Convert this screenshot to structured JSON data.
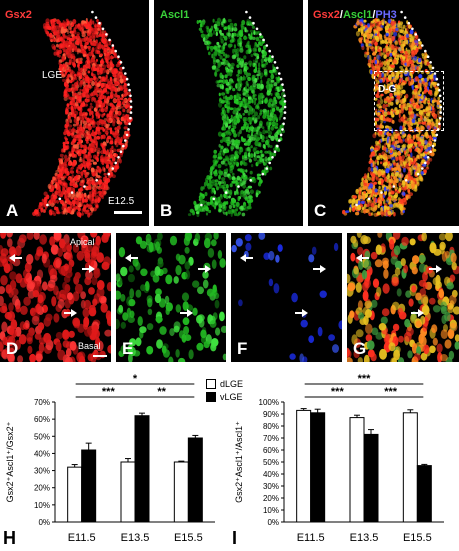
{
  "panels_top": [
    {
      "letter": "A",
      "title_parts": [
        {
          "text": "Gsx2",
          "color": "#ff3b3b"
        }
      ],
      "region": "LGE",
      "stage": "E12.5"
    },
    {
      "letter": "B",
      "title_parts": [
        {
          "text": "Ascl1",
          "color": "#39d139"
        }
      ]
    },
    {
      "letter": "C",
      "title_parts": [
        {
          "text": "Gsx2",
          "color": "#ff3b3b"
        },
        {
          "text": "/",
          "color": "#ffffff"
        },
        {
          "text": "Ascl1",
          "color": "#39d139"
        },
        {
          "text": "/",
          "color": "#ffffff"
        },
        {
          "text": "PH3",
          "color": "#6a6aff"
        }
      ],
      "box_label": "D-G"
    }
  ],
  "panels_mid": [
    {
      "letter": "D",
      "apical": "Apical",
      "basal": "Basal"
    },
    {
      "letter": "E"
    },
    {
      "letter": "F"
    },
    {
      "letter": "G"
    }
  ],
  "colors": {
    "red": "#ff2a2a",
    "green": "#2fd22f",
    "blue": "#2a3cff",
    "yellow": "#e8c020"
  },
  "chart_data": [
    {
      "type": "bar",
      "panel": "H",
      "categories": [
        "E11.5",
        "E13.5",
        "E15.5"
      ],
      "ylabel": "Gsx2⁺Ascl1⁺/Gsx2⁺",
      "yticks": [
        "0%",
        "10%",
        "20%",
        "30%",
        "40%",
        "50%",
        "60%",
        "70%"
      ],
      "ylim": [
        0,
        70
      ],
      "series": [
        {
          "name": "dLGE",
          "fill": "#ffffff",
          "values": [
            32,
            35,
            35
          ],
          "errors": [
            1.5,
            2,
            0.5
          ]
        },
        {
          "name": "vLGE",
          "fill": "#000000",
          "values": [
            42,
            62,
            49
          ],
          "errors": [
            4,
            1.5,
            1.5
          ]
        }
      ],
      "significance": [
        {
          "from": 0,
          "to": 2,
          "label": "*"
        },
        {
          "from": 0,
          "to": 1,
          "label": "***"
        },
        {
          "from": 1,
          "to": 2,
          "label": "**"
        }
      ]
    },
    {
      "type": "bar",
      "panel": "I",
      "categories": [
        "E11.5",
        "E13.5",
        "E15.5"
      ],
      "ylabel": "Gsx2⁺Ascl1⁺/Ascl1⁺",
      "yticks": [
        "0%",
        "10%",
        "20%",
        "30%",
        "40%",
        "50%",
        "60%",
        "70%",
        "80%",
        "90%",
        "100%"
      ],
      "ylim": [
        0,
        100
      ],
      "series": [
        {
          "name": "dLGE",
          "fill": "#ffffff",
          "values": [
            93,
            87,
            91
          ],
          "errors": [
            1.5,
            2,
            2.5
          ]
        },
        {
          "name": "vLGE",
          "fill": "#000000",
          "values": [
            91,
            73,
            47
          ],
          "errors": [
            3,
            4,
            1
          ]
        }
      ],
      "significance": [
        {
          "from": 0,
          "to": 2,
          "label": "***"
        },
        {
          "from": 0,
          "to": 1,
          "label": "***"
        },
        {
          "from": 1,
          "to": 2,
          "label": "***"
        }
      ]
    }
  ],
  "legend": {
    "items": [
      "dLGE",
      "vLGE"
    ]
  }
}
